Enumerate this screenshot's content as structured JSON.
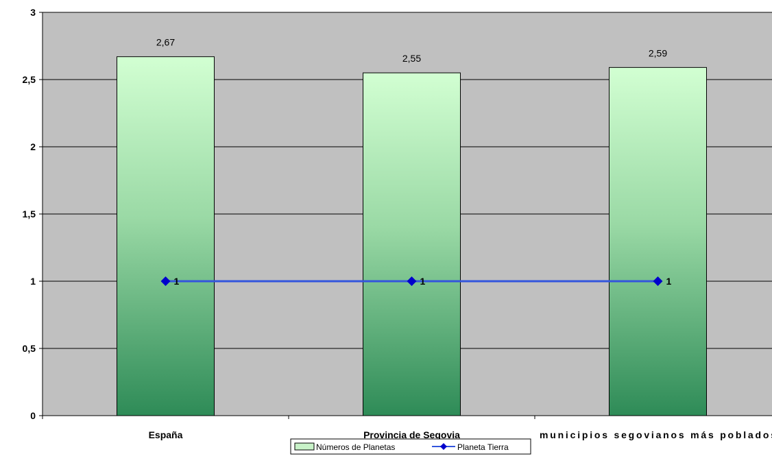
{
  "chart_data": {
    "type": "bar",
    "title": "",
    "xlabel": "",
    "ylabel": "",
    "categories": [
      "España",
      "Provincia de Segovia",
      "municipios segovianos más poblados"
    ],
    "series": [
      {
        "name": "Números de Planetas",
        "type": "bar",
        "values": [
          2.67,
          2.55,
          2.59
        ],
        "value_labels": [
          "2,67",
          "2,55",
          "2,59"
        ]
      },
      {
        "name": "Planeta Tierra",
        "type": "line",
        "values": [
          1,
          1,
          1
        ],
        "value_labels": [
          "1",
          "1",
          "1"
        ]
      }
    ],
    "ylim": [
      0,
      3
    ],
    "yticks": [
      0,
      0.5,
      1,
      1.5,
      2,
      2.5,
      3
    ],
    "ytick_labels": [
      "0",
      "0,5",
      "1",
      "1,5",
      "2",
      "2,5",
      "3"
    ],
    "grid": true,
    "legend_position": "bottom",
    "colors": {
      "plot_background": "#c0c0c0",
      "bar_top": "#d2ffd2",
      "bar_bottom": "#2e8b57",
      "line": "#3355dd",
      "marker": "#0000cc",
      "gridline": "#000000"
    }
  }
}
